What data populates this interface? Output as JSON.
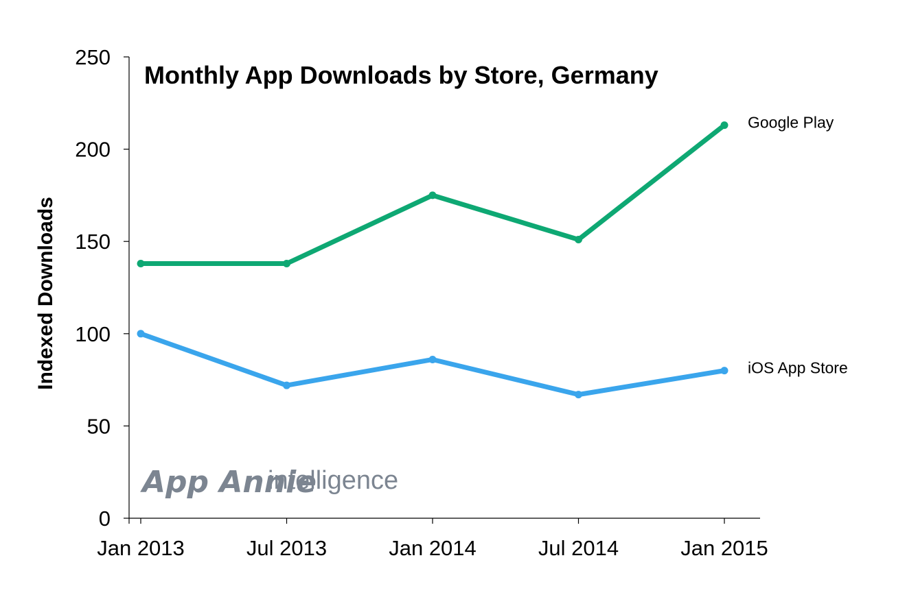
{
  "chart_data": {
    "type": "line",
    "title": "Monthly App Downloads by Store, Germany",
    "xlabel": "",
    "ylabel": "Indexed Downloads",
    "categories": [
      "Jan 2013",
      "Jul 2013",
      "Jan 2014",
      "Jul 2014",
      "Jan 2015"
    ],
    "ylim": [
      0,
      250
    ],
    "yticks": [
      0,
      50,
      100,
      150,
      200,
      250
    ],
    "grid": false,
    "legend": "end-of-line labels",
    "series": [
      {
        "name": "Google Play",
        "values": [
          138,
          138,
          175,
          151,
          213
        ],
        "color": "#0ea873"
      },
      {
        "name": "iOS App Store",
        "values": [
          100,
          72,
          86,
          67,
          80
        ],
        "color": "#3aa5ec"
      }
    ]
  },
  "watermark": {
    "brand": "App Annie",
    "product": "intelligence"
  }
}
